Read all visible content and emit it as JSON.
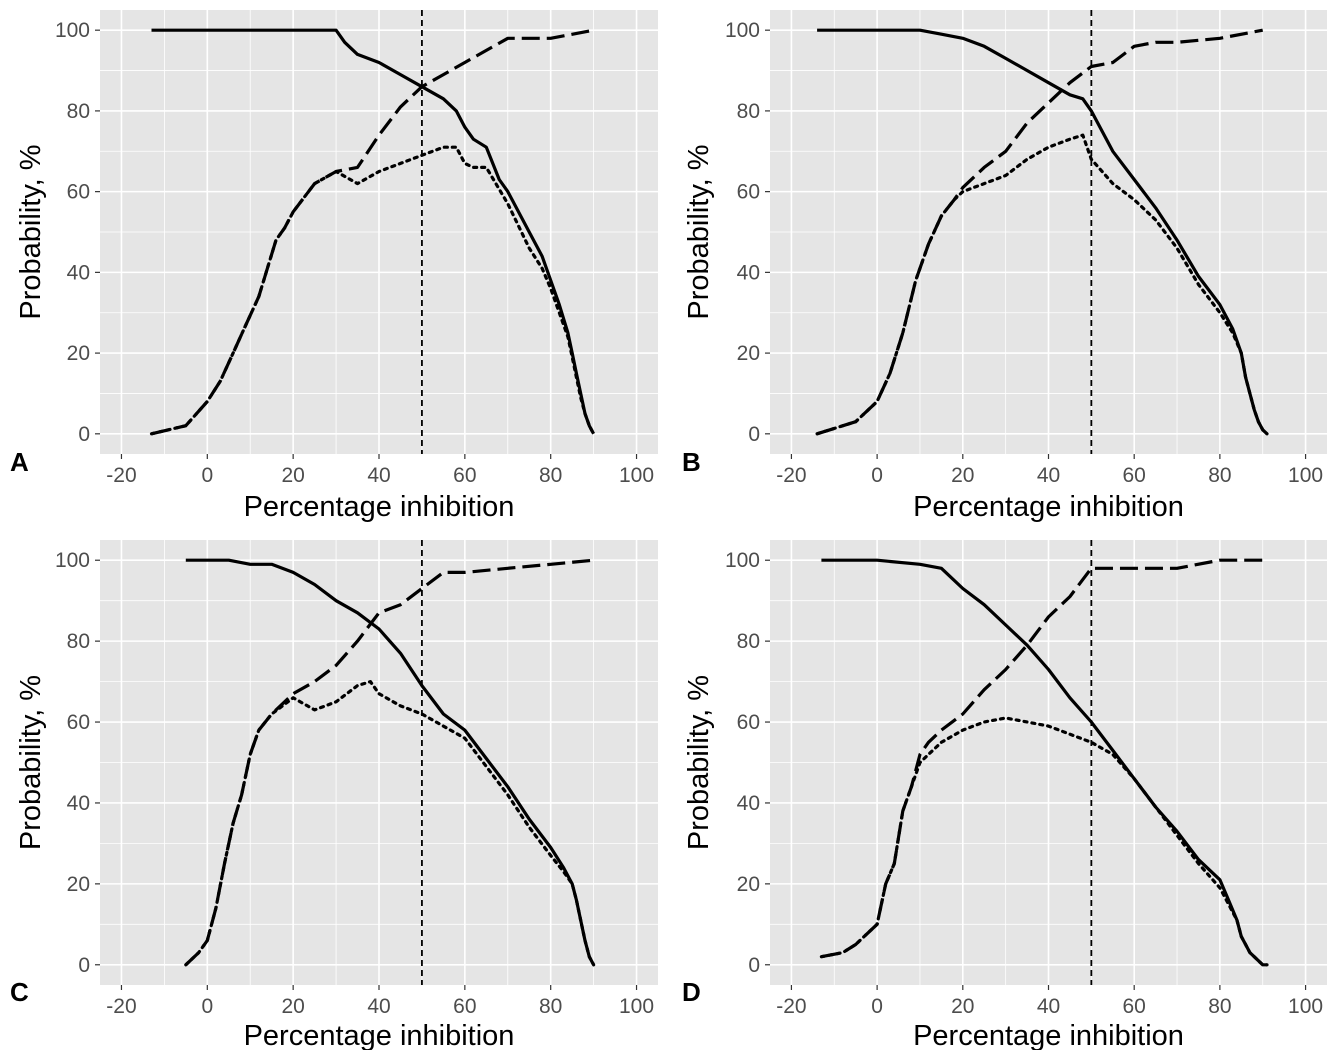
{
  "figure": {
    "background": "#ffffff",
    "panel_background": "#e5e5e5",
    "grid_color": "#ffffff",
    "ink": "#000000",
    "axis_text_color": "#4d4d4d"
  },
  "chart_data": [
    {
      "panel_label": "A",
      "type": "line",
      "xlabel": "Percentage inhibition",
      "ylabel": "Probability, %",
      "xlim": [
        -25,
        105
      ],
      "ylim": [
        -5,
        105
      ],
      "x_ticks": [
        -20,
        0,
        20,
        40,
        60,
        80,
        100
      ],
      "y_ticks": [
        0,
        20,
        40,
        60,
        80,
        100
      ],
      "grid": true,
      "reference_line_x": 50,
      "series": [
        {
          "line_style": "solid",
          "x": [
            -13,
            0,
            10,
            20,
            30,
            32,
            35,
            40,
            45,
            50,
            55,
            58,
            60,
            62,
            65,
            68,
            70,
            75,
            78,
            80,
            82,
            84,
            85,
            86,
            87,
            88,
            89,
            90
          ],
          "y": [
            100,
            100,
            100,
            100,
            100,
            97,
            94,
            92,
            89,
            86,
            83,
            80,
            76,
            73,
            71,
            63,
            60,
            50,
            44,
            38,
            32,
            25,
            20,
            15,
            10,
            5,
            2,
            0
          ]
        },
        {
          "line_style": "dashed",
          "x": [
            -13,
            -5,
            0,
            3,
            6,
            9,
            12,
            14,
            16,
            18,
            20,
            25,
            30,
            35,
            40,
            45,
            50,
            55,
            60,
            65,
            70,
            75,
            80,
            90
          ],
          "y": [
            0,
            2,
            8,
            13,
            20,
            27,
            34,
            41,
            48,
            51,
            55,
            62,
            65,
            66,
            74,
            81,
            86,
            89,
            92,
            95,
            98,
            98,
            98,
            100
          ]
        },
        {
          "line_style": "dotted",
          "x": [
            -13,
            -5,
            0,
            3,
            6,
            9,
            12,
            14,
            16,
            18,
            20,
            25,
            30,
            35,
            40,
            45,
            50,
            55,
            58,
            60,
            62,
            65,
            70,
            75,
            78,
            80,
            82,
            84,
            85,
            86,
            87,
            88,
            89,
            90
          ],
          "y": [
            0,
            2,
            8,
            13,
            20,
            27,
            34,
            41,
            48,
            51,
            55,
            62,
            65,
            62,
            65,
            67,
            69,
            71,
            71,
            67,
            66,
            66,
            57,
            46,
            41,
            36,
            30,
            24,
            19,
            14,
            9,
            5,
            2,
            0
          ]
        }
      ]
    },
    {
      "panel_label": "B",
      "type": "line",
      "xlabel": "Percentage inhibition",
      "ylabel": "Probability, %",
      "xlim": [
        -25,
        105
      ],
      "ylim": [
        -5,
        105
      ],
      "x_ticks": [
        -20,
        0,
        20,
        40,
        60,
        80,
        100
      ],
      "y_ticks": [
        0,
        20,
        40,
        60,
        80,
        100
      ],
      "grid": true,
      "reference_line_x": 50,
      "series": [
        {
          "line_style": "solid",
          "x": [
            -14,
            0,
            10,
            15,
            20,
            25,
            30,
            35,
            40,
            45,
            48,
            50,
            55,
            60,
            65,
            70,
            75,
            80,
            83,
            85,
            86,
            87,
            88,
            89,
            90,
            91
          ],
          "y": [
            100,
            100,
            100,
            99,
            98,
            96,
            93,
            90,
            87,
            84,
            83,
            80,
            70,
            63,
            56,
            48,
            39,
            32,
            26,
            20,
            14,
            10,
            6,
            3,
            1,
            0
          ]
        },
        {
          "line_style": "dashed",
          "x": [
            -14,
            -5,
            0,
            3,
            6,
            9,
            12,
            15,
            18,
            20,
            25,
            30,
            35,
            40,
            45,
            50,
            55,
            60,
            65,
            70,
            80,
            90
          ],
          "y": [
            0,
            3,
            8,
            15,
            25,
            38,
            47,
            54,
            58,
            61,
            66,
            70,
            77,
            82,
            87,
            91,
            92,
            96,
            97,
            97,
            98,
            100
          ]
        },
        {
          "line_style": "dotted",
          "x": [
            -14,
            -5,
            0,
            3,
            6,
            9,
            12,
            15,
            18,
            20,
            25,
            30,
            35,
            40,
            45,
            48,
            50,
            55,
            60,
            65,
            70,
            75,
            80,
            83,
            85,
            86,
            87,
            88,
            89,
            90,
            91
          ],
          "y": [
            0,
            3,
            8,
            15,
            25,
            38,
            47,
            54,
            58,
            60,
            62,
            64,
            68,
            71,
            73,
            74,
            68,
            62,
            58,
            53,
            46,
            37,
            30,
            25,
            20,
            14,
            10,
            6,
            3,
            1,
            0
          ]
        }
      ]
    },
    {
      "panel_label": "C",
      "type": "line",
      "xlabel": "Percentage inhibition",
      "ylabel": "Probability, %",
      "xlim": [
        -25,
        105
      ],
      "ylim": [
        -5,
        105
      ],
      "x_ticks": [
        -20,
        0,
        20,
        40,
        60,
        80,
        100
      ],
      "y_ticks": [
        0,
        20,
        40,
        60,
        80,
        100
      ],
      "grid": true,
      "reference_line_x": 50,
      "series": [
        {
          "line_style": "solid",
          "x": [
            -5,
            5,
            10,
            15,
            20,
            25,
            30,
            35,
            40,
            45,
            50,
            55,
            60,
            65,
            70,
            75,
            80,
            83,
            85,
            86,
            87,
            88,
            89,
            90
          ],
          "y": [
            100,
            100,
            99,
            99,
            97,
            94,
            90,
            87,
            83,
            77,
            69,
            62,
            58,
            51,
            44,
            36,
            29,
            24,
            20,
            16,
            11,
            6,
            2,
            0
          ]
        },
        {
          "line_style": "dashed",
          "x": [
            -5,
            -2,
            0,
            2,
            4,
            6,
            8,
            10,
            12,
            15,
            20,
            25,
            30,
            35,
            40,
            45,
            50,
            55,
            60,
            70,
            80,
            90
          ],
          "y": [
            0,
            3,
            6,
            14,
            25,
            35,
            42,
            52,
            58,
            62,
            67,
            70,
            74,
            80,
            87,
            89,
            93,
            97,
            97,
            98,
            99,
            100
          ]
        },
        {
          "line_style": "dotted",
          "x": [
            -5,
            -2,
            0,
            2,
            4,
            6,
            8,
            10,
            12,
            15,
            20,
            25,
            30,
            35,
            38,
            40,
            45,
            50,
            55,
            60,
            65,
            70,
            75,
            80,
            83,
            85,
            86,
            87,
            88,
            89,
            90
          ],
          "y": [
            0,
            3,
            6,
            14,
            25,
            35,
            42,
            52,
            58,
            62,
            66,
            63,
            65,
            69,
            70,
            67,
            64,
            62,
            59,
            56,
            49,
            42,
            34,
            27,
            23,
            20,
            16,
            11,
            6,
            2,
            0
          ]
        }
      ]
    },
    {
      "panel_label": "D",
      "type": "line",
      "xlabel": "Percentage inhibition",
      "ylabel": "Probability, %",
      "xlim": [
        -25,
        105
      ],
      "ylim": [
        -5,
        105
      ],
      "x_ticks": [
        -20,
        0,
        20,
        40,
        60,
        80,
        100
      ],
      "y_ticks": [
        0,
        20,
        40,
        60,
        80,
        100
      ],
      "grid": true,
      "reference_line_x": 50,
      "series": [
        {
          "line_style": "solid",
          "x": [
            -13,
            0,
            10,
            15,
            20,
            25,
            30,
            35,
            40,
            45,
            50,
            55,
            60,
            65,
            70,
            75,
            80,
            82,
            84,
            85,
            86,
            87,
            88,
            89,
            90,
            91
          ],
          "y": [
            100,
            100,
            99,
            98,
            93,
            89,
            84,
            79,
            73,
            66,
            60,
            53,
            46,
            39,
            33,
            26,
            21,
            16,
            11,
            7,
            5,
            3,
            2,
            1,
            0,
            0
          ]
        },
        {
          "line_style": "dashed",
          "x": [
            -13,
            -8,
            -5,
            -2,
            0,
            2,
            4,
            6,
            8,
            10,
            12,
            15,
            20,
            25,
            30,
            35,
            40,
            45,
            50,
            55,
            60,
            70,
            80,
            91
          ],
          "y": [
            2,
            3,
            5,
            8,
            10,
            20,
            25,
            38,
            44,
            52,
            55,
            58,
            62,
            68,
            73,
            79,
            86,
            91,
            98,
            98,
            98,
            98,
            100,
            100
          ]
        },
        {
          "line_style": "dotted",
          "x": [
            -13,
            -8,
            -5,
            -2,
            0,
            2,
            4,
            6,
            8,
            10,
            12,
            15,
            20,
            25,
            30,
            35,
            40,
            45,
            50,
            55,
            60,
            65,
            70,
            75,
            80,
            82,
            84,
            85,
            86,
            87,
            88,
            89,
            90,
            91
          ],
          "y": [
            2,
            3,
            5,
            8,
            10,
            20,
            25,
            38,
            44,
            50,
            52,
            55,
            58,
            60,
            61,
            60,
            59,
            57,
            55,
            52,
            46,
            39,
            32,
            25,
            19,
            15,
            11,
            7,
            5,
            3,
            2,
            1,
            0,
            0
          ]
        }
      ]
    }
  ]
}
